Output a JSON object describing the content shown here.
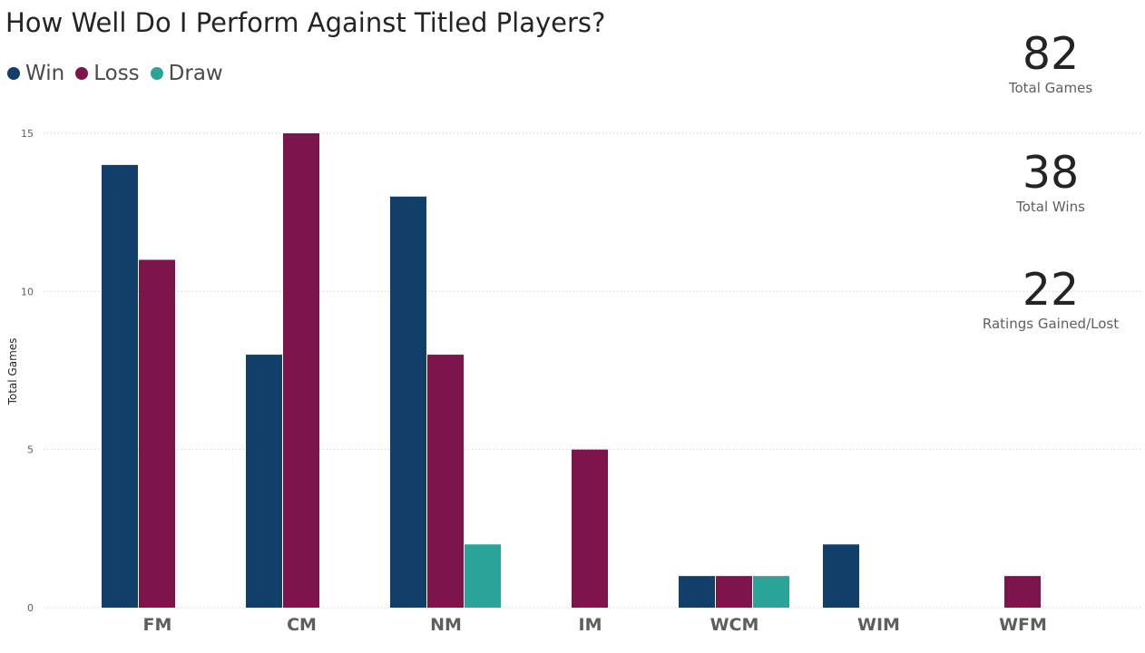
{
  "header": {
    "title": "How Well Do I Perform Against Titled Players?"
  },
  "legend": [
    {
      "label": "Win",
      "color": "#123f6a"
    },
    {
      "label": "Loss",
      "color": "#7e144c"
    },
    {
      "label": "Draw",
      "color": "#2aa398"
    }
  ],
  "kpis": [
    {
      "value": "82",
      "label": "Total Games"
    },
    {
      "value": "38",
      "label": "Total Wins"
    },
    {
      "value": "22",
      "label": "Ratings Gained/Lost"
    }
  ],
  "chart_data": {
    "type": "bar",
    "title": "How Well Do I Perform Against Titled Players?",
    "ylabel": "Total Games",
    "xlabel": "",
    "ylim": [
      0,
      15
    ],
    "yticks": [
      0,
      5,
      10,
      15
    ],
    "grid": true,
    "legend_position": "top-left",
    "categories": [
      "FM",
      "CM",
      "NM",
      "IM",
      "WCM",
      "WIM",
      "WFM"
    ],
    "series": [
      {
        "name": "Win",
        "color": "#123f6a",
        "values": [
          14,
          8,
          13,
          null,
          1,
          2,
          null
        ]
      },
      {
        "name": "Loss",
        "color": "#7e144c",
        "values": [
          11,
          15,
          8,
          5,
          1,
          null,
          1
        ]
      },
      {
        "name": "Draw",
        "color": "#2aa398",
        "values": [
          null,
          null,
          2,
          null,
          1,
          null,
          null
        ]
      }
    ]
  }
}
